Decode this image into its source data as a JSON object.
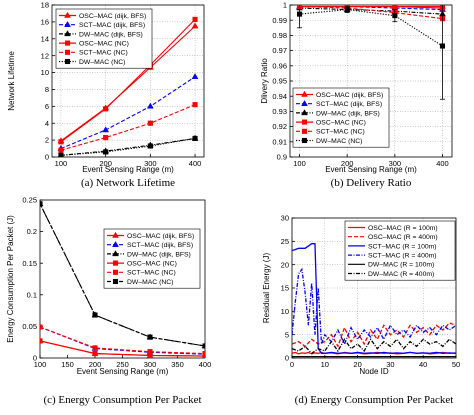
{
  "chart_data": [
    {
      "type": "line",
      "caption": "(a) Network Lifetime",
      "xlabel": "Event Sensing Range (m)",
      "ylabel": "Network Lifetime",
      "xlim": [
        80,
        420
      ],
      "ylim": [
        0,
        18
      ],
      "xticks": [
        100,
        200,
        300,
        400
      ],
      "yticks": [
        0,
        2,
        4,
        6,
        8,
        10,
        12,
        14,
        16,
        18
      ],
      "grid": true,
      "legend_position": "top-left",
      "series": [
        {
          "name": "OSC–MAC (dijk, BFS)",
          "color": "#ff0000",
          "dash": "",
          "marker": "uptri",
          "x": [
            100,
            200,
            300,
            400
          ],
          "y": [
            1.9,
            5.8,
            10.6,
            15.5
          ]
        },
        {
          "name": "SCT–MAC (dijk, BFS)",
          "color": "#0000ff",
          "dash": "4,2",
          "marker": "uptri",
          "x": [
            100,
            200,
            300,
            400
          ],
          "y": [
            1.0,
            3.2,
            6.0,
            9.5
          ]
        },
        {
          "name": "DW–MAC (dijk, BFS)",
          "color": "#000000",
          "dash": "4,1.5,1,1.5",
          "marker": "uptri",
          "x": [
            100,
            200,
            300,
            400
          ],
          "y": [
            0.2,
            0.7,
            1.4,
            2.2
          ]
        },
        {
          "name": "OSC–MAC (NC)",
          "color": "#ff0000",
          "dash": "",
          "marker": "square",
          "x": [
            100,
            200,
            300,
            400
          ],
          "y": [
            1.8,
            5.7,
            10.9,
            16.3
          ]
        },
        {
          "name": "SCT–MAC (NC)",
          "color": "#ff0000",
          "dash": "4,2",
          "marker": "square",
          "x": [
            100,
            200,
            300,
            400
          ],
          "y": [
            0.8,
            2.3,
            4.0,
            6.2
          ]
        },
        {
          "name": "DW–MAC (NC)",
          "color": "#000000",
          "dash": "1.2,1.5",
          "marker": "square",
          "x": [
            100,
            200,
            300,
            400
          ],
          "y": [
            0.2,
            0.6,
            1.3,
            2.2
          ]
        }
      ]
    },
    {
      "type": "line",
      "caption": "(b) Delivery Ratio",
      "xlabel": "Event Sensing Range (m)",
      "ylabel": "Dlivery Ratio",
      "xlim": [
        80,
        420
      ],
      "ylim": [
        0.9,
        1.0
      ],
      "xticks": [
        100,
        200,
        300,
        400
      ],
      "yticks": [
        0.9,
        0.91,
        0.92,
        0.93,
        0.94,
        0.95,
        0.96,
        0.97,
        0.98,
        0.99,
        1.0
      ],
      "ytick_labels": [
        "0.9",
        "0.91",
        "0.92",
        "0.93",
        "0.94",
        "0.95",
        "0.96",
        "0.97",
        "0.98",
        "0.99",
        "1"
      ],
      "grid": true,
      "legend_position": "bottom-left",
      "series": [
        {
          "name": "OSC–MAC (dijk, BFS)",
          "color": "#ff0000",
          "dash": "",
          "marker": "uptri",
          "x": [
            100,
            200,
            300,
            400
          ],
          "y": [
            0.999,
            0.999,
            0.999,
            0.999
          ]
        },
        {
          "name": "SCT–MAC (dijk, BFS)",
          "color": "#0000ff",
          "dash": "4,2",
          "marker": "uptri",
          "x": [
            100,
            200,
            300,
            400
          ],
          "y": [
            0.999,
            0.999,
            0.998,
            0.997
          ]
        },
        {
          "name": "DW–MAC (dijk, BFS)",
          "color": "#000000",
          "dash": "4,1.5,1,1.5",
          "marker": "uptri",
          "x": [
            100,
            200,
            300,
            400
          ],
          "y": [
            0.998,
            0.997,
            0.996,
            0.994
          ]
        },
        {
          "name": "OSC–MAC (NC)",
          "color": "#ff0000",
          "dash": "",
          "marker": "square",
          "x": [
            100,
            200,
            300,
            400
          ],
          "y": [
            0.999,
            0.999,
            0.999,
            0.998
          ]
        },
        {
          "name": "SCT–MAC (NC)",
          "color": "#ff0000",
          "dash": "4,2",
          "marker": "square",
          "x": [
            100,
            200,
            300,
            400
          ],
          "y": [
            0.999,
            0.998,
            0.995,
            0.991
          ]
        },
        {
          "name": "DW–MAC (NC)",
          "color": "#000000",
          "dash": "1.2,1.5",
          "marker": "square",
          "x": [
            100,
            200,
            300,
            400
          ],
          "y": [
            0.994,
            0.997,
            0.993,
            0.973
          ],
          "err": [
            0.009,
            0.002,
            0.004,
            0.035
          ]
        }
      ]
    },
    {
      "type": "line",
      "caption": "(c) Energy Consumption Per Packet",
      "xlabel": "Event Sensing Range (m)",
      "ylabel": "Energy Consumption Per Packet (J)",
      "xlim": [
        100,
        400
      ],
      "ylim": [
        0,
        0.25
      ],
      "xticks": [
        100,
        150,
        200,
        250,
        300,
        350,
        400
      ],
      "yticks": [
        0,
        0.05,
        0.1,
        0.15,
        0.2,
        0.25
      ],
      "ytick_labels": [
        "0",
        "0.05",
        "0.1",
        "0.15",
        "0.2",
        "0.25"
      ],
      "grid": false,
      "legend_position": "top-right",
      "series": [
        {
          "name": "OSC–MAC (dijk, BFS)",
          "color": "#ff0000",
          "dash": "",
          "marker": "uptri",
          "x": [
            100,
            200,
            300,
            400
          ],
          "y": [
            0.027,
            0.007,
            0.004,
            0.003
          ]
        },
        {
          "name": "SCT–MAC (dijk, BFS)",
          "color": "#0000ff",
          "dash": "4,2",
          "marker": "uptri",
          "x": [
            100,
            200,
            300,
            400
          ],
          "y": [
            0.049,
            0.015,
            0.009,
            0.006
          ]
        },
        {
          "name": "DW–MAC (dijk, BFS)",
          "color": "#000000",
          "dash": "4,1.5,1,1.5",
          "marker": "uptri",
          "x": [
            100,
            200,
            300,
            400
          ],
          "y": [
            0.244,
            0.068,
            0.033,
            0.019
          ]
        },
        {
          "name": "OSC–MAC (NC)",
          "color": "#ff0000",
          "dash": "",
          "marker": "square",
          "x": [
            100,
            200,
            300,
            400
          ],
          "y": [
            0.027,
            0.007,
            0.004,
            0.003
          ]
        },
        {
          "name": "SCT–MAC (NC)",
          "color": "#ff0000",
          "dash": "4,2",
          "marker": "square",
          "x": [
            100,
            200,
            300,
            400
          ],
          "y": [
            0.049,
            0.016,
            0.01,
            0.007
          ]
        },
        {
          "name": "DW–MAC (NC)",
          "color": "#000000",
          "dash": "4,2",
          "marker": "square",
          "x": [
            100,
            200,
            300,
            400
          ],
          "y": [
            0.244,
            0.068,
            0.033,
            0.019
          ]
        }
      ]
    },
    {
      "type": "line",
      "caption": "(d) Energy Consumption Per Packet",
      "xlabel": "Node ID",
      "ylabel": "Residual Energy (J)",
      "xlim": [
        0,
        50
      ],
      "ylim": [
        0,
        30
      ],
      "xticks": [
        0,
        10,
        20,
        30,
        40,
        50
      ],
      "yticks": [
        0,
        5,
        10,
        15,
        20,
        25,
        30
      ],
      "grid": true,
      "legend_position": "top-right",
      "series": [
        {
          "name": "OSC–MAC (R = 100m)",
          "color": "#ff0000",
          "dash": "",
          "marker": "",
          "x": [
            0,
            1,
            2,
            3,
            4,
            5,
            6,
            7,
            8,
            9,
            10,
            12,
            14,
            16,
            18,
            20,
            22,
            24,
            26,
            28,
            30,
            32,
            34,
            36,
            38,
            40,
            42,
            44,
            46,
            48,
            50
          ],
          "y": [
            1.0,
            1.2,
            0.9,
            1.1,
            1.0,
            1.2,
            0.9,
            1.1,
            1.0,
            1.2,
            1.0,
            1.1,
            0.9,
            1.2,
            1.0,
            1.1,
            0.9,
            1.0,
            1.2,
            1.0,
            1.1,
            0.9,
            1.0,
            1.2,
            1.0,
            1.1,
            0.9,
            1.0,
            1.2,
            1.0,
            1.1
          ]
        },
        {
          "name": "OSC–MAC (R = 400m)",
          "color": "#ff0000",
          "dash": "4,2",
          "marker": "",
          "x": [
            0,
            2,
            4,
            6,
            8,
            10,
            12,
            14,
            16,
            18,
            20,
            22,
            24,
            26,
            28,
            30,
            32,
            34,
            36,
            38,
            40,
            42,
            44,
            46,
            48,
            50
          ],
          "y": [
            3.0,
            3.5,
            2.5,
            4.0,
            3.0,
            3.5,
            5.0,
            2.5,
            6.5,
            3.5,
            5.5,
            3.0,
            6.0,
            4.0,
            7.0,
            5.0,
            6.0,
            4.5,
            7.0,
            5.5,
            6.5,
            5.0,
            7.0,
            6.0,
            7.5,
            7.0
          ]
        },
        {
          "name": "SCT–MAC (R = 100m)",
          "color": "#0000ff",
          "dash": "",
          "marker": "",
          "x": [
            0,
            2,
            4,
            6,
            7,
            8,
            9,
            10,
            12,
            14,
            16,
            18,
            20,
            22,
            24,
            26,
            28,
            30,
            32,
            34,
            36,
            38,
            40,
            42,
            44,
            46,
            48,
            50
          ],
          "y": [
            23.0,
            23.5,
            23.5,
            24.5,
            24.5,
            2.0,
            1.0,
            1.0,
            1.2,
            1.0,
            1.1,
            1.0,
            1.2,
            1.0,
            1.1,
            1.0,
            1.2,
            1.0,
            1.1,
            1.0,
            1.2,
            1.0,
            1.1,
            1.0,
            1.2,
            1.0,
            1.1,
            1.0
          ]
        },
        {
          "name": "SCT–MAC (R = 400m)",
          "color": "#0000ff",
          "dash": "4,1.5,1,1.5",
          "marker": "",
          "x": [
            0,
            1,
            2,
            3,
            4,
            5,
            6,
            7,
            8,
            9,
            10,
            12,
            14,
            16,
            18,
            20,
            22,
            24,
            26,
            28,
            30,
            32,
            34,
            36,
            38,
            40,
            42,
            44,
            46,
            48,
            50
          ],
          "y": [
            5.0,
            12.0,
            18.0,
            19.0,
            14.0,
            7.0,
            16.0,
            5.0,
            15.0,
            3.0,
            5.0,
            3.5,
            6.0,
            3.0,
            6.5,
            4.0,
            6.0,
            4.5,
            6.5,
            4.0,
            7.0,
            5.0,
            6.0,
            4.5,
            7.0,
            5.5,
            6.5,
            5.0,
            7.0,
            6.0,
            7.0
          ]
        },
        {
          "name": "DW–MAC (R = 100m)",
          "color": "#000000",
          "dash": "",
          "marker": "",
          "x": [
            0,
            10,
            20,
            30,
            40,
            50
          ],
          "y": [
            0.3,
            0.3,
            0.3,
            0.3,
            0.3,
            0.3
          ]
        },
        {
          "name": "DW–MAC (R = 400m)",
          "color": "#000000",
          "dash": "4,1.5,1,1.5",
          "marker": "",
          "x": [
            0,
            2,
            4,
            6,
            8,
            10,
            12,
            14,
            16,
            18,
            20,
            22,
            24,
            26,
            28,
            30,
            32,
            34,
            36,
            38,
            40,
            42,
            44,
            46,
            48,
            50
          ],
          "y": [
            2.0,
            1.5,
            2.5,
            1.0,
            2.0,
            1.5,
            3.5,
            1.5,
            4.0,
            2.0,
            3.0,
            1.5,
            4.0,
            2.0,
            3.5,
            2.5,
            4.0,
            2.0,
            3.5,
            2.5,
            4.0,
            3.0,
            3.5,
            2.5,
            4.0,
            3.0
          ]
        }
      ]
    }
  ]
}
